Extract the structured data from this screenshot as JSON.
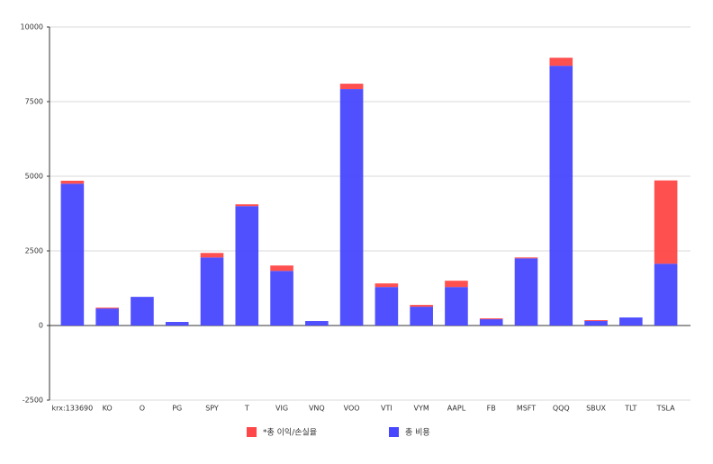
{
  "chart_data": {
    "type": "stacked-bar",
    "categories": [
      "krx:133690",
      "KO",
      "O",
      "PG",
      "SPY",
      "T",
      "VIG",
      "VNQ",
      "VOO",
      "VTI",
      "VYM",
      "AAPL",
      "FB",
      "MSFT",
      "QQQ",
      "SBUX",
      "TLT",
      "TSLA"
    ],
    "series": [
      {
        "name": "총 비용",
        "color": "#4747ff",
        "values": [
          4750,
          570,
          960,
          120,
          2280,
          4000,
          1830,
          150,
          7920,
          1290,
          630,
          1290,
          210,
          2250,
          8700,
          150,
          270,
          2070
        ]
      },
      {
        "name": "*총 이익/손실율",
        "color": "#ff4747",
        "values": [
          100,
          30,
          0,
          0,
          150,
          60,
          180,
          0,
          180,
          120,
          60,
          210,
          30,
          30,
          270,
          30,
          0,
          2790
        ]
      }
    ],
    "ylim": [
      -2500,
      10000
    ],
    "yticks": [
      -2500,
      0,
      2500,
      5000,
      7500,
      10000
    ],
    "grid": true
  }
}
